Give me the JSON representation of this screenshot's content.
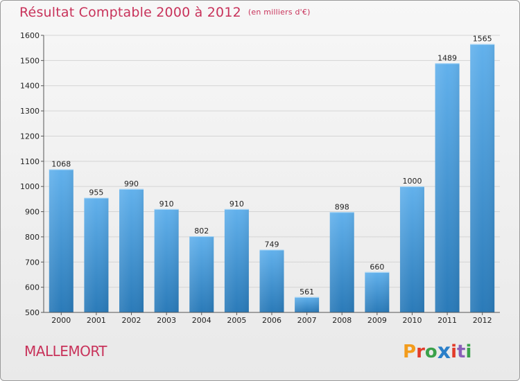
{
  "header": {
    "title": "Résultat Comptable 2000 à 2012",
    "unit": "(en milliers d'€)"
  },
  "footer": {
    "town": "MALLEMORT",
    "brand_letters": [
      "P",
      "r",
      "o",
      "x",
      "i",
      "t",
      "i"
    ],
    "brand_colors": [
      "#f39c1c",
      "#e23b2a",
      "#3aa14a",
      "#2a7fc9",
      "#e23b2a",
      "#8a5fb8",
      "#3aa14a"
    ]
  },
  "colors": {
    "title": "#c8325a",
    "bar_top": "#62b1ec",
    "bar_bottom": "#2a7ab8",
    "axis": "#555555",
    "grid": "#d4d4d4"
  },
  "chart_data": {
    "type": "bar",
    "title": "Résultat Comptable 2000 à 2012",
    "subtitle": "(en milliers d'€)",
    "categories": [
      "2000",
      "2001",
      "2002",
      "2003",
      "2004",
      "2005",
      "2006",
      "2007",
      "2008",
      "2009",
      "2010",
      "2011",
      "2012"
    ],
    "values": [
      1068,
      955,
      990,
      910,
      802,
      910,
      749,
      561,
      898,
      660,
      1000,
      1489,
      1565
    ],
    "ylim": [
      500,
      1600
    ],
    "yticks": [
      500,
      600,
      700,
      800,
      900,
      1000,
      1100,
      1200,
      1300,
      1400,
      1500,
      1600
    ],
    "grid": true,
    "legend": "none"
  }
}
